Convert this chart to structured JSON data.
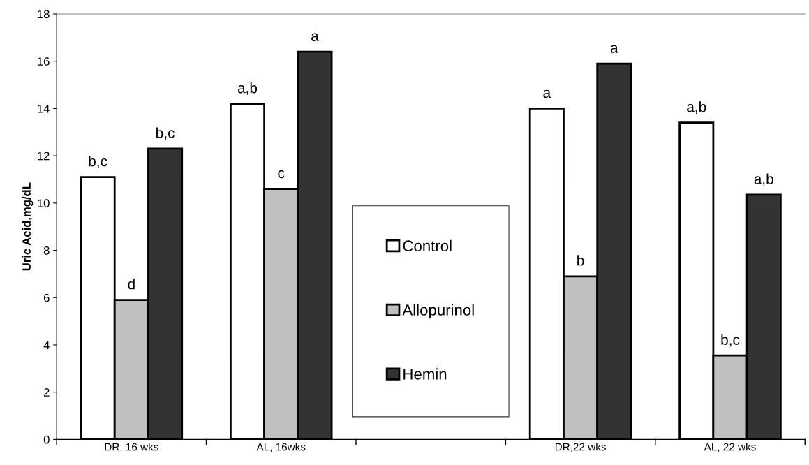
{
  "chart_data": {
    "type": "bar",
    "ylabel": "Uric Acid,mg/dL",
    "categories": [
      "DR, 16 wks",
      "AL, 16wks",
      null,
      "DR,22 wks",
      "AL, 22 wks"
    ],
    "series": [
      {
        "name": "Control",
        "color": "#ffffff",
        "values": [
          11.1,
          14.2,
          null,
          14.0,
          13.4
        ],
        "value_labels": [
          "b,c",
          "a,b",
          null,
          "a",
          "a,b"
        ]
      },
      {
        "name": "Allopurinol",
        "color": "#c0c0c0",
        "values": [
          5.9,
          10.6,
          null,
          6.9,
          3.55
        ],
        "value_labels": [
          "d",
          "c",
          null,
          "b",
          "b,c"
        ]
      },
      {
        "name": "Hemin",
        "color": "#333333",
        "values": [
          12.3,
          16.4,
          null,
          15.9,
          10.35
        ],
        "value_labels": [
          "b,c",
          "a",
          null,
          "a",
          "a,b"
        ]
      }
    ],
    "ylim": [
      0,
      18
    ],
    "yticks": [
      0,
      2,
      4,
      6,
      8,
      10,
      12,
      14,
      16,
      18
    ],
    "grid": false,
    "legend": "bottom"
  }
}
